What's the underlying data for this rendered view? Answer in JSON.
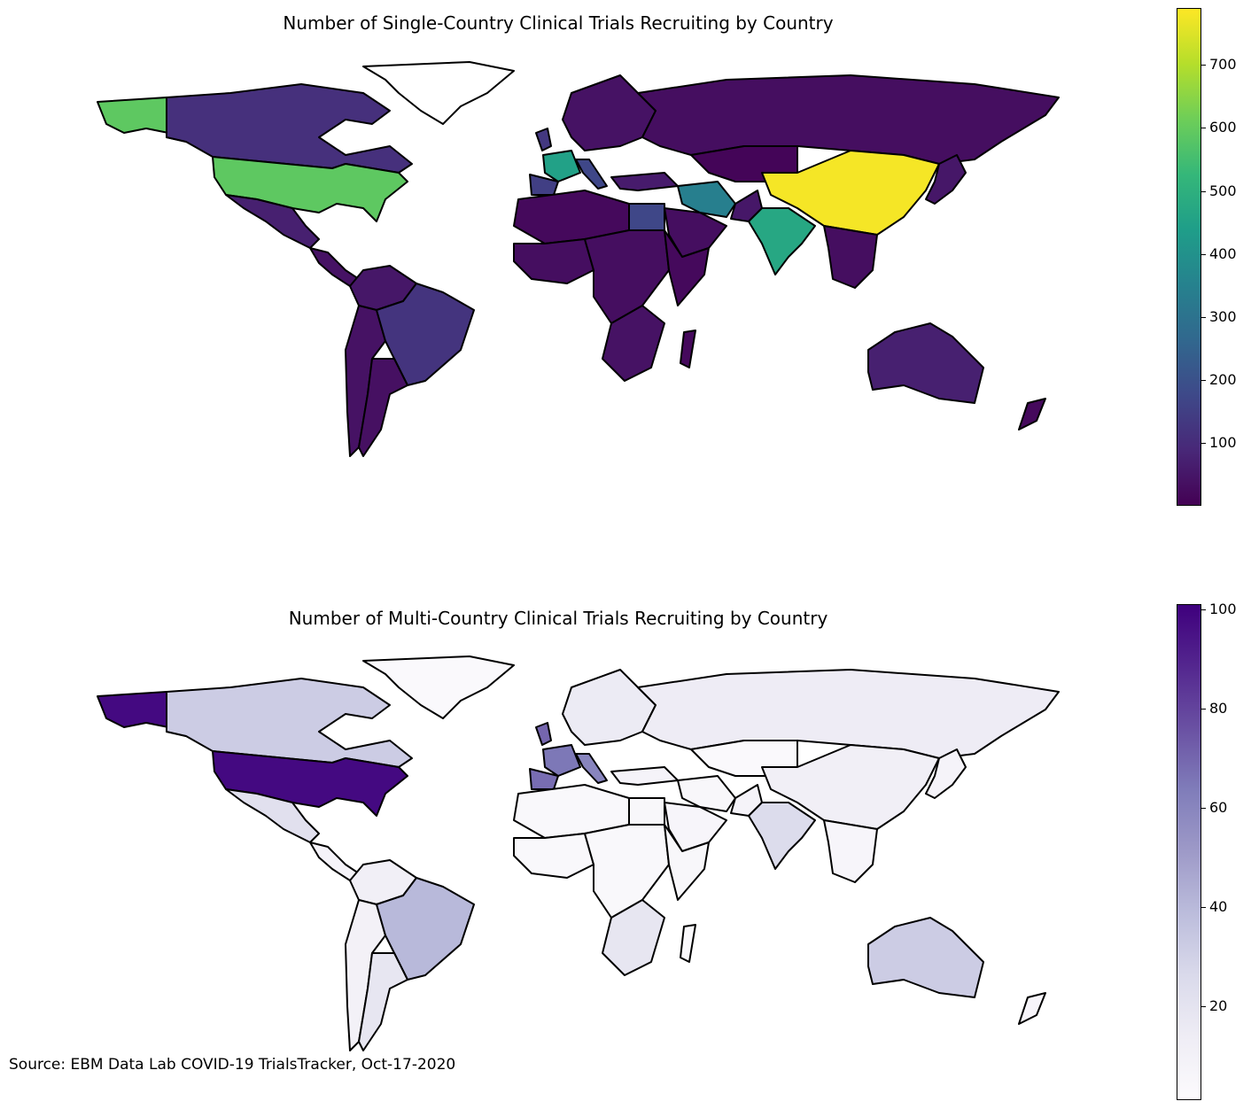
{
  "maps": [
    {
      "title": "Number of Single-Country Clinical Trials Recruiting by Country",
      "colormap": "viridis",
      "colorbar": {
        "ticks": [
          "100",
          "200",
          "300",
          "400",
          "500",
          "600",
          "700"
        ],
        "min": 1,
        "max": 790
      },
      "values": {
        "usa": 590,
        "alaska": 590,
        "canada": 110,
        "greenland": null,
        "mexico": 70,
        "central_america": 40,
        "colombia_venezuela": 50,
        "peru_chile": 40,
        "brazil": 120,
        "argentina": 35,
        "europe_north": 40,
        "uk": 130,
        "france": 450,
        "spain": 150,
        "italy": 170,
        "russia": 30,
        "kazakhstan_centralasia": 10,
        "turkey": 60,
        "iran": 340,
        "pakistan": 50,
        "india": 470,
        "china": 780,
        "egypt": 170,
        "north_africa_west": 20,
        "central_africa": 30,
        "east_africa": 20,
        "south_africa": 40,
        "west_africa": 30,
        "arabia": 30,
        "southeast_asia": 30,
        "japan_korea": 50,
        "australia": 70,
        "new_zealand": 20,
        "madagascar": 20
      }
    },
    {
      "title": "Number of Multi-Country Clinical Trials Recruiting by Country",
      "colormap": "purples",
      "colorbar": {
        "ticks": [
          "20",
          "40",
          "60",
          "80",
          "100"
        ],
        "min": 1,
        "max": 101
      },
      "values": {
        "usa": 98,
        "alaska": 98,
        "canada": 32,
        "greenland": 3,
        "mexico": 22,
        "central_america": 8,
        "colombia_venezuela": 12,
        "peru_chile": 10,
        "brazil": 40,
        "argentina": 18,
        "europe_north": 15,
        "uk": 70,
        "france": 65,
        "spain": 68,
        "italy": 60,
        "russia": 14,
        "kazakhstan_centralasia": 3,
        "turkey": 8,
        "iran": 5,
        "pakistan": 8,
        "india": 25,
        "china": 12,
        "egypt": 5,
        "north_africa_west": 4,
        "central_africa": 4,
        "east_africa": 5,
        "south_africa": 18,
        "west_africa": 4,
        "arabia": 6,
        "southeast_asia": 6,
        "japan_korea": 8,
        "australia": 32,
        "new_zealand": 6,
        "madagascar": 3
      }
    }
  ],
  "source": "Source: EBM Data Lab COVID-19 TrialsTracker, Oct-17-2020"
}
